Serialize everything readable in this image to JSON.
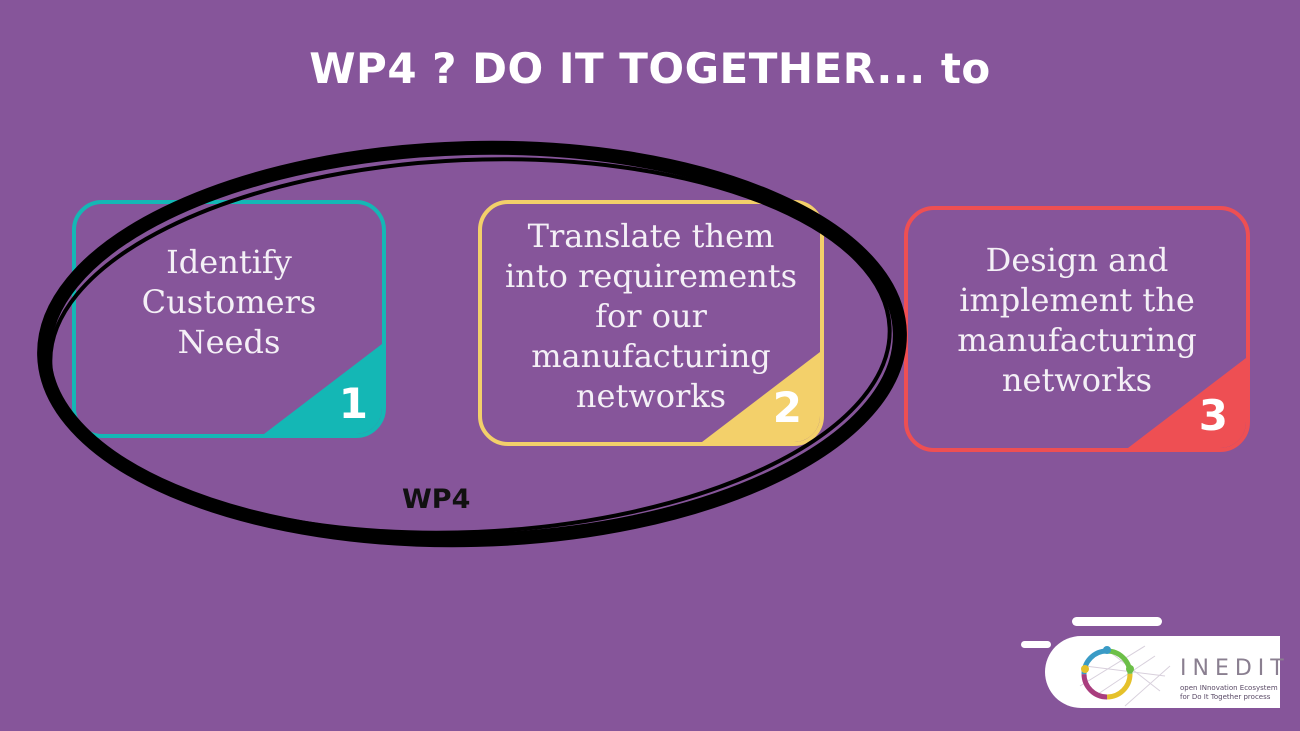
{
  "title": "WP4 ? DO IT TOGETHER... to",
  "cards": [
    {
      "text": "Identify\nCustomers\nNeeds",
      "number": "1",
      "color": "#14b7b5"
    },
    {
      "text": "Translate them\ninto requirements\nfor our\nmanufacturing\nnetworks",
      "number": "2",
      "color": "#f3d06a"
    },
    {
      "text": "Design and\nimplement the\nmanufacturing\nnetworks",
      "number": "3",
      "color": "#ee4f53"
    }
  ],
  "ellipse_label": "WP4",
  "logo": {
    "name": "INEDIT",
    "tagline": "open INnovation Ecosystem\nfor Do It Together process"
  },
  "colors": {
    "background": "#86559a",
    "ellipse": "#000000"
  }
}
